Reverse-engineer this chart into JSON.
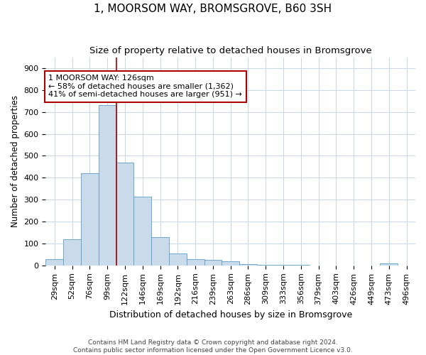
{
  "title": "1, MOORSOM WAY, BROMSGROVE, B60 3SH",
  "subtitle": "Size of property relative to detached houses in Bromsgrove",
  "xlabel": "Distribution of detached houses by size in Bromsgrove",
  "ylabel": "Number of detached properties",
  "categories": [
    "29sqm",
    "52sqm",
    "76sqm",
    "99sqm",
    "122sqm",
    "146sqm",
    "169sqm",
    "192sqm",
    "216sqm",
    "239sqm",
    "263sqm",
    "286sqm",
    "309sqm",
    "333sqm",
    "356sqm",
    "379sqm",
    "403sqm",
    "426sqm",
    "449sqm",
    "473sqm",
    "496sqm"
  ],
  "values": [
    30,
    120,
    420,
    730,
    470,
    315,
    130,
    55,
    30,
    25,
    20,
    5,
    4,
    3,
    2,
    1,
    1,
    1,
    0,
    10,
    0
  ],
  "bar_color": "#c9daea",
  "bar_edge_color": "#5a9ec9",
  "vline_x": 3.5,
  "vline_color": "#aa0000",
  "annotation_text": "1 MOORSOM WAY: 126sqm\n← 58% of detached houses are smaller (1,362)\n41% of semi-detached houses are larger (951) →",
  "annotation_box_color": "#ffffff",
  "annotation_box_edge_color": "#aa0000",
  "footer_line1": "Contains HM Land Registry data © Crown copyright and database right 2024.",
  "footer_line2": "Contains public sector information licensed under the Open Government Licence v3.0.",
  "ylim": [
    0,
    950
  ],
  "yticks": [
    0,
    100,
    200,
    300,
    400,
    500,
    600,
    700,
    800,
    900
  ],
  "title_fontsize": 11,
  "subtitle_fontsize": 9.5,
  "xlabel_fontsize": 9,
  "ylabel_fontsize": 8.5,
  "tick_fontsize": 8,
  "annotation_fontsize": 8,
  "footer_fontsize": 6.5,
  "background_color": "#ffffff",
  "grid_color": "#c8d8e8"
}
